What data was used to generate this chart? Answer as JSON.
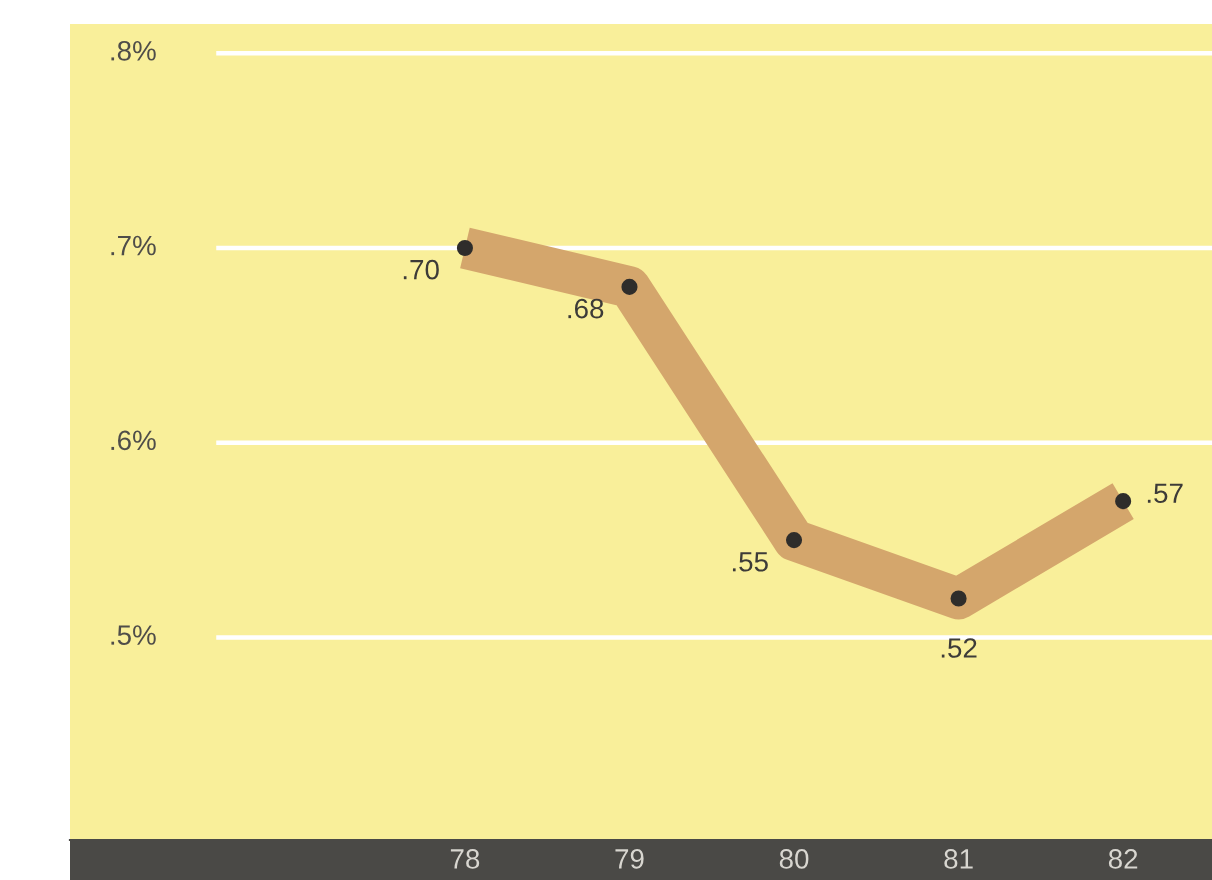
{
  "chart_data": {
    "type": "line",
    "categories": [
      "78",
      "79",
      "80",
      "81",
      "82"
    ],
    "series": [
      {
        "color": "#d4a66c",
        "values": [
          0.7,
          0.68,
          0.55,
          0.52,
          0.57
        ],
        "value_labels": [
          ".70",
          ".68",
          ".55",
          ".52",
          ".57"
        ]
      }
    ],
    "ylim": [
      0.396,
      0.815
    ],
    "yticks": [
      {
        "value": 0.5,
        "label": ".5%"
      },
      {
        "value": 0.6,
        "label": ".6%"
      },
      {
        "value": 0.7,
        "label": ".7%"
      },
      {
        "value": 0.8,
        "label": ".8%"
      }
    ],
    "grid": "y",
    "marker": "circle",
    "line_style": "solid"
  }
}
